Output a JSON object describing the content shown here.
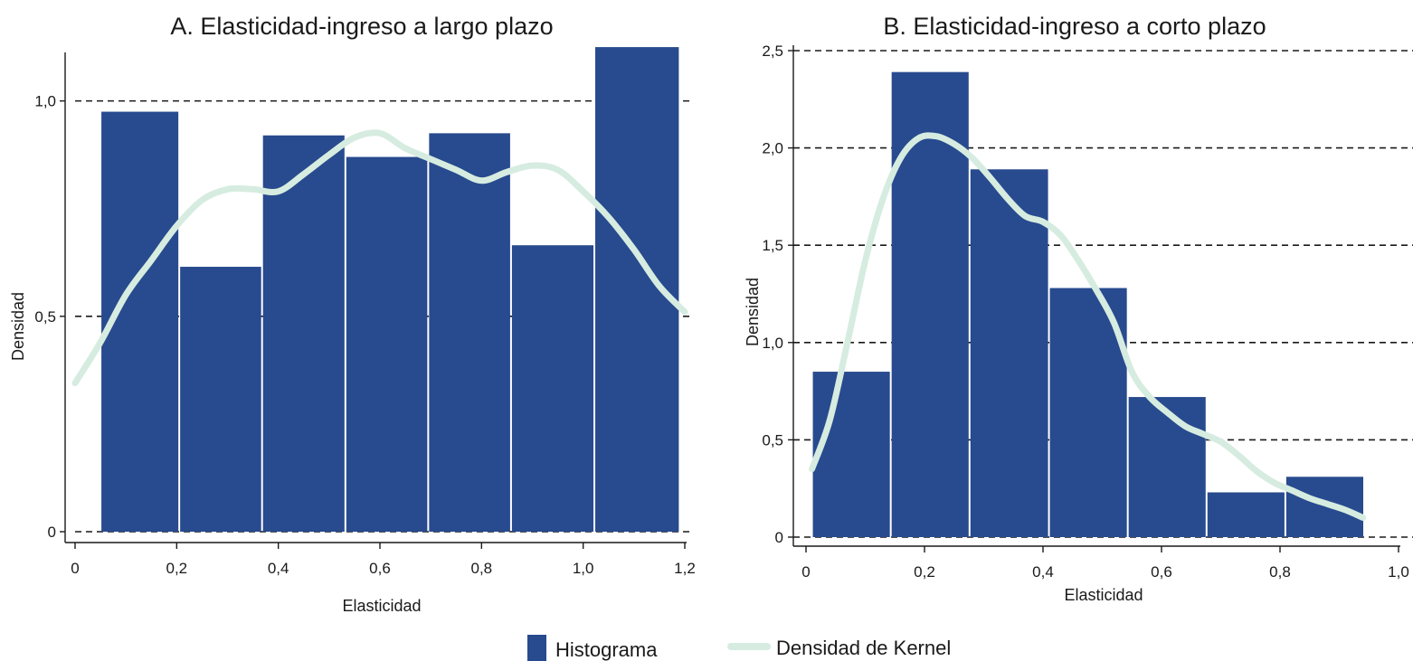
{
  "colors": {
    "bar": "#284a8e",
    "kernel": "#d6ece0",
    "grid": "#1a1a1a"
  },
  "legend": {
    "histogram_label": "Histograma",
    "kernel_label": "Densidad de Kernel"
  },
  "chart_data": [
    {
      "type": "bar",
      "title": "A. Elasticidad-ingreso a largo plazo",
      "xlabel": "Elasticidad",
      "ylabel": "Densidad",
      "xlim": [
        0,
        1.2
      ],
      "ylim": [
        0,
        1.1
      ],
      "x_ticks": [
        0,
        0.2,
        0.4,
        0.6,
        0.8,
        1.0,
        1.2
      ],
      "x_tick_labels": [
        "0",
        "0,2",
        "0,4",
        "0,6",
        "0,8",
        "1,0",
        "1,2"
      ],
      "y_ticks": [
        0,
        0.5,
        1.0
      ],
      "y_tick_labels": [
        "0",
        "0,5",
        "1,0"
      ],
      "grid": "horizontal dashed",
      "bins": [
        {
          "x0": 0.05,
          "x1": 0.205,
          "value": 0.975
        },
        {
          "x0": 0.205,
          "x1": 0.368,
          "value": 0.615
        },
        {
          "x0": 0.368,
          "x1": 0.532,
          "value": 0.92
        },
        {
          "x0": 0.532,
          "x1": 0.695,
          "value": 0.87
        },
        {
          "x0": 0.695,
          "x1": 0.858,
          "value": 0.925
        },
        {
          "x0": 0.858,
          "x1": 1.022,
          "value": 0.665
        },
        {
          "x0": 1.022,
          "x1": 1.19,
          "value": 1.125
        }
      ],
      "kernel": {
        "x": [
          0.0,
          0.05,
          0.1,
          0.15,
          0.2,
          0.25,
          0.3,
          0.35,
          0.4,
          0.45,
          0.5,
          0.55,
          0.6,
          0.65,
          0.7,
          0.75,
          0.8,
          0.85,
          0.9,
          0.95,
          1.0,
          1.05,
          1.1,
          1.15,
          1.2
        ],
        "y": [
          0.345,
          0.44,
          0.55,
          0.63,
          0.71,
          0.77,
          0.795,
          0.795,
          0.79,
          0.83,
          0.875,
          0.915,
          0.925,
          0.89,
          0.865,
          0.84,
          0.815,
          0.835,
          0.85,
          0.84,
          0.79,
          0.73,
          0.655,
          0.57,
          0.51
        ]
      }
    },
    {
      "type": "bar",
      "title": "B. Elasticidad-ingreso a corto plazo",
      "xlabel": "Elasticidad",
      "ylabel": "Densidad",
      "xlim": [
        0,
        1.0
      ],
      "ylim": [
        0,
        2.5
      ],
      "x_ticks": [
        0,
        0.2,
        0.4,
        0.6,
        0.8,
        1.0
      ],
      "x_tick_labels": [
        "0",
        "0,2",
        "0,4",
        "0,6",
        "0,8",
        "1,0"
      ],
      "y_ticks": [
        0,
        0.5,
        1.0,
        1.5,
        2.0,
        2.5
      ],
      "y_tick_labels": [
        "0",
        "0,5",
        "1,0",
        "1,5",
        "2,0",
        "2,5"
      ],
      "grid": "horizontal dashed",
      "bins": [
        {
          "x0": 0.01,
          "x1": 0.143,
          "value": 0.85
        },
        {
          "x0": 0.143,
          "x1": 0.276,
          "value": 2.39
        },
        {
          "x0": 0.276,
          "x1": 0.41,
          "value": 1.89
        },
        {
          "x0": 0.41,
          "x1": 0.543,
          "value": 1.28
        },
        {
          "x0": 0.543,
          "x1": 0.676,
          "value": 0.72
        },
        {
          "x0": 0.676,
          "x1": 0.809,
          "value": 0.23
        },
        {
          "x0": 0.809,
          "x1": 0.942,
          "value": 0.31
        }
      ],
      "kernel": {
        "x": [
          0.01,
          0.04,
          0.07,
          0.1,
          0.13,
          0.16,
          0.19,
          0.22,
          0.25,
          0.28,
          0.31,
          0.34,
          0.37,
          0.4,
          0.43,
          0.46,
          0.49,
          0.52,
          0.55,
          0.58,
          0.61,
          0.64,
          0.67,
          0.7,
          0.73,
          0.76,
          0.79,
          0.82,
          0.85,
          0.88,
          0.91,
          0.94
        ],
        "y": [
          0.35,
          0.6,
          1.0,
          1.42,
          1.74,
          1.95,
          2.05,
          2.06,
          2.02,
          1.95,
          1.85,
          1.74,
          1.65,
          1.62,
          1.55,
          1.42,
          1.27,
          1.1,
          0.85,
          0.72,
          0.64,
          0.57,
          0.53,
          0.49,
          0.42,
          0.34,
          0.28,
          0.24,
          0.2,
          0.17,
          0.14,
          0.1
        ]
      }
    }
  ]
}
